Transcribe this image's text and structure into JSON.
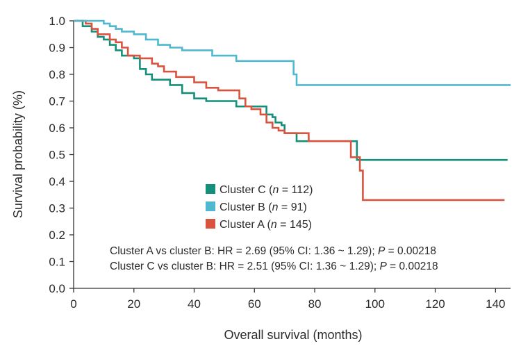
{
  "chart_data": {
    "type": "line",
    "subtype": "kaplan-meier",
    "title": "",
    "xlabel": "Overall survival (months)",
    "ylabel": "Survival probability (%)",
    "xlim": [
      0,
      145
    ],
    "ylim": [
      0,
      1
    ],
    "xticks": [
      0,
      20,
      40,
      60,
      80,
      100,
      120,
      140
    ],
    "xtick_labels": [
      "0",
      "20",
      "40",
      "60",
      "80",
      "100",
      "120",
      "140"
    ],
    "yticks": [
      0.0,
      0.1,
      0.2,
      0.3,
      0.4,
      0.5,
      0.6,
      0.7,
      0.8,
      0.9,
      1.0
    ],
    "ytick_labels": [
      "0.0",
      "0.1",
      "0.2",
      "0.3",
      "0.4",
      "0.5",
      "0.6",
      "0.7",
      "0.8",
      "0.9",
      "1.0"
    ],
    "grid": false,
    "legend": {
      "position": "center-bottom",
      "entries": [
        {
          "name": "Cluster C",
          "n_label": "n",
          "n_value": "= 112)",
          "prefix": "(",
          "color": "#14907a"
        },
        {
          "name": "Cluster B",
          "n_label": "n",
          "n_value": "= 91)",
          "prefix": "(",
          "color": "#4fb8d0"
        },
        {
          "name": "Cluster A",
          "n_label": "n",
          "n_value": "= 145)",
          "prefix": "(",
          "color": "#d9533e"
        }
      ]
    },
    "annotations": [
      {
        "text": "Cluster A vs cluster B: HR = 2.69 (95% CI: 1.36 ~ 1.29); ",
        "p_label": "P",
        "p_value": " = 0.00218"
      },
      {
        "text": "Cluster C vs cluster B: HR = 2.51 (95% CI: 1.36 ~ 1.29); ",
        "p_label": "P",
        "p_value": " = 0.00218"
      }
    ],
    "series": [
      {
        "name": "Cluster C",
        "color": "#14907a",
        "steps": [
          [
            0,
            1.0
          ],
          [
            3,
            0.98
          ],
          [
            6,
            0.96
          ],
          [
            8,
            0.94
          ],
          [
            10,
            0.93
          ],
          [
            12,
            0.91
          ],
          [
            14,
            0.89
          ],
          [
            16,
            0.87
          ],
          [
            20,
            0.86
          ],
          [
            22,
            0.82
          ],
          [
            24,
            0.8
          ],
          [
            26,
            0.78
          ],
          [
            32,
            0.76
          ],
          [
            36,
            0.73
          ],
          [
            40,
            0.71
          ],
          [
            44,
            0.7
          ],
          [
            54,
            0.68
          ],
          [
            60,
            0.68
          ],
          [
            64,
            0.65
          ],
          [
            66,
            0.64
          ],
          [
            67,
            0.62
          ],
          [
            69,
            0.61
          ],
          [
            70,
            0.58
          ],
          [
            74,
            0.55
          ],
          [
            86,
            0.55
          ],
          [
            94,
            0.48
          ],
          [
            144,
            0.48
          ]
        ]
      },
      {
        "name": "Cluster B",
        "color": "#4fb8d0",
        "steps": [
          [
            0,
            1.0
          ],
          [
            10,
            0.99
          ],
          [
            12,
            0.98
          ],
          [
            14,
            0.97
          ],
          [
            16,
            0.96
          ],
          [
            20,
            0.95
          ],
          [
            24,
            0.93
          ],
          [
            28,
            0.91
          ],
          [
            32,
            0.9
          ],
          [
            36,
            0.89
          ],
          [
            46,
            0.87
          ],
          [
            54,
            0.85
          ],
          [
            66,
            0.85
          ],
          [
            73,
            0.8
          ],
          [
            74,
            0.76
          ],
          [
            145,
            0.76
          ]
        ]
      },
      {
        "name": "Cluster A",
        "color": "#d9533e",
        "steps": [
          [
            0,
            1.0
          ],
          [
            4,
            0.99
          ],
          [
            6,
            0.97
          ],
          [
            8,
            0.95
          ],
          [
            12,
            0.93
          ],
          [
            14,
            0.92
          ],
          [
            16,
            0.9
          ],
          [
            18,
            0.87
          ],
          [
            22,
            0.86
          ],
          [
            26,
            0.84
          ],
          [
            28,
            0.83
          ],
          [
            30,
            0.81
          ],
          [
            34,
            0.79
          ],
          [
            40,
            0.77
          ],
          [
            44,
            0.75
          ],
          [
            48,
            0.74
          ],
          [
            55,
            0.71
          ],
          [
            57,
            0.68
          ],
          [
            59,
            0.67
          ],
          [
            62,
            0.65
          ],
          [
            64,
            0.62
          ],
          [
            66,
            0.6
          ],
          [
            68,
            0.59
          ],
          [
            70,
            0.58
          ],
          [
            78,
            0.55
          ],
          [
            92,
            0.49
          ],
          [
            95,
            0.44
          ],
          [
            96,
            0.33
          ],
          [
            143,
            0.33
          ]
        ]
      }
    ]
  }
}
